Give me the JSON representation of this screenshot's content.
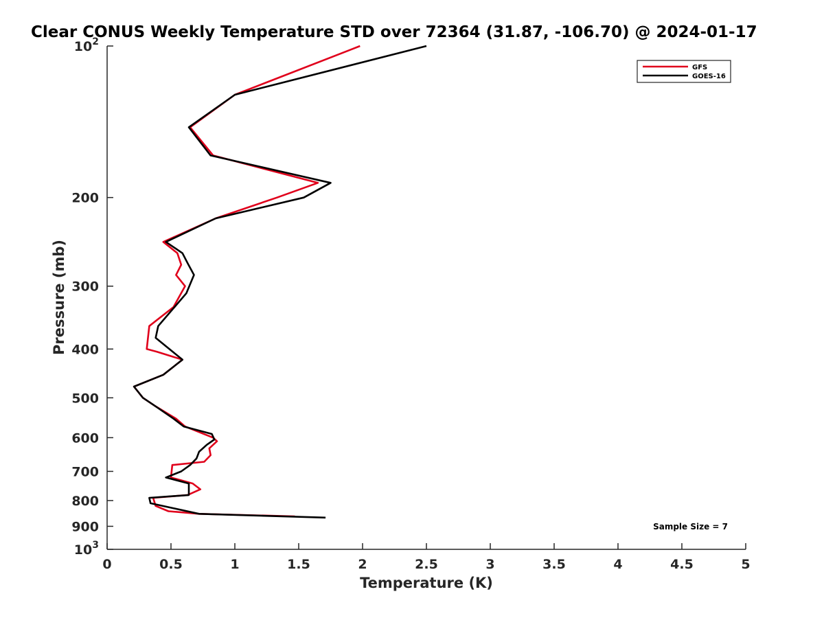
{
  "chart_data": {
    "type": "line",
    "title": "Clear CONUS Weekly Temperature STD over 72364 (31.87, -106.70) @ 2024-01-17",
    "xlabel": "Temperature (K)",
    "ylabel": "Pressure (mb)",
    "xlim": [
      0,
      5
    ],
    "ylim": [
      100,
      1000
    ],
    "y_scale": "log",
    "y_reversed": true,
    "x_ticks": [
      "0",
      "0.5",
      "1",
      "1.5",
      "2",
      "2.5",
      "3",
      "3.5",
      "4",
      "4.5",
      "5"
    ],
    "y_ticks": [
      {
        "value": 100,
        "base": "10",
        "exp": "2"
      },
      {
        "value": 200,
        "label": "200"
      },
      {
        "value": 300,
        "label": "300"
      },
      {
        "value": 400,
        "label": "400"
      },
      {
        "value": 500,
        "label": "500"
      },
      {
        "value": 600,
        "label": "600"
      },
      {
        "value": 700,
        "label": "700"
      },
      {
        "value": 800,
        "label": "800"
      },
      {
        "value": 900,
        "label": "900"
      },
      {
        "value": 1000,
        "base": "10",
        "exp": "3"
      }
    ],
    "grid": false,
    "legend_position": "top-right",
    "annotation": "Sample Size = 7",
    "series": [
      {
        "name": "GFS",
        "color": "#e0001b",
        "x": [
          1.98,
          1.0,
          0.65,
          0.83,
          1.65,
          1.33,
          0.85,
          0.44,
          0.55,
          0.58,
          0.54,
          0.61,
          0.52,
          0.33,
          0.31,
          0.39,
          0.59,
          0.44,
          0.21,
          0.28,
          0.38,
          0.54,
          0.61,
          0.83,
          0.86,
          0.8,
          0.81,
          0.76,
          0.51,
          0.5,
          0.67,
          0.73,
          0.63,
          0.36,
          0.38,
          0.48,
          0.72,
          1.47
        ],
        "y": [
          100,
          125,
          145,
          165,
          187,
          200,
          220,
          245,
          258,
          272,
          285,
          300,
          330,
          360,
          400,
          405,
          420,
          450,
          475,
          500,
          520,
          550,
          570,
          600,
          610,
          630,
          650,
          670,
          680,
          720,
          740,
          760,
          780,
          790,
          820,
          840,
          850,
          860
        ]
      },
      {
        "name": "GOES-16",
        "color": "#000000",
        "x": [
          2.5,
          1.0,
          0.64,
          0.81,
          1.75,
          1.54,
          0.85,
          0.46,
          0.59,
          0.63,
          0.68,
          0.62,
          0.4,
          0.38,
          0.59,
          0.44,
          0.21,
          0.28,
          0.38,
          0.52,
          0.6,
          0.82,
          0.84,
          0.78,
          0.72,
          0.7,
          0.65,
          0.58,
          0.46,
          0.64,
          0.64,
          0.33,
          0.34,
          0.72,
          1.71
        ],
        "y": [
          100,
          125,
          145,
          165,
          187,
          200,
          220,
          245,
          258,
          270,
          285,
          310,
          360,
          380,
          420,
          450,
          475,
          500,
          520,
          550,
          570,
          590,
          605,
          620,
          640,
          660,
          680,
          700,
          720,
          740,
          780,
          790,
          810,
          850,
          865
        ]
      }
    ]
  }
}
